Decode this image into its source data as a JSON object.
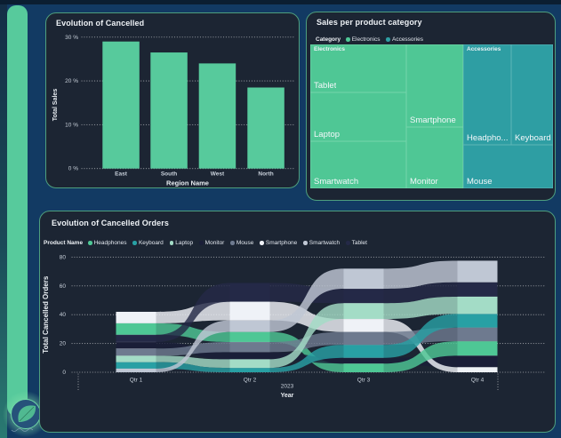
{
  "page": {
    "background": "#123A63",
    "accent": "#57CA9C"
  },
  "panels": {
    "cancelled_sales": {
      "title": "Evolution of Cancelled",
      "chart_data": {
        "type": "bar",
        "categories": [
          "East",
          "South",
          "West",
          "North"
        ],
        "values": [
          29,
          26.5,
          24,
          18.5
        ],
        "title": "Evolution of Cancelled",
        "xlabel": "Region Name",
        "ylabel": "Total Sales",
        "ylim": [
          0,
          30
        ],
        "yticks": [
          "0 %",
          "10 %",
          "20 %",
          "30 %"
        ],
        "ytick_values": [
          0,
          10,
          20,
          30
        ],
        "grid": "dotted",
        "bar_color": "#57CA9C"
      }
    },
    "sales_category": {
      "title": "Sales per product category",
      "legend": {
        "label": "Category",
        "items": [
          {
            "label": "Electronics",
            "color": "#4FC795"
          },
          {
            "label": "Accessories",
            "color": "#2E9EA3"
          }
        ]
      },
      "chart_data": {
        "type": "treemap",
        "title": "Sales per product category",
        "groups": [
          {
            "name": "Electronics",
            "color": "#4FC795"
          },
          {
            "name": "Accessories",
            "color": "#2E9EA3"
          }
        ],
        "cells": [
          {
            "name": "Tablet",
            "label": "Tablet",
            "group": "Electronics",
            "x": 0,
            "y": 0,
            "w": 0.395,
            "h": 0.335,
            "group_label": "Electronics"
          },
          {
            "name": "Laptop",
            "label": "Laptop",
            "group": "Electronics",
            "x": 0,
            "y": 0.335,
            "w": 0.395,
            "h": 0.338
          },
          {
            "name": "Smartwatch",
            "label": "Smartwatch",
            "group": "Electronics",
            "x": 0,
            "y": 0.673,
            "w": 0.395,
            "h": 0.327
          },
          {
            "name": "Smartphone",
            "label": "Smartphone",
            "group": "Electronics",
            "x": 0.395,
            "y": 0,
            "w": 0.2336,
            "h": 0.572
          },
          {
            "name": "Monitor",
            "label": "Monitor",
            "group": "Electronics",
            "x": 0.395,
            "y": 0.572,
            "w": 0.2336,
            "h": 0.428
          },
          {
            "name": "Headphones",
            "label": "Headpho...",
            "group": "Accessories",
            "x": 0.6286,
            "y": 0,
            "w": 0.2002,
            "h": 0.6975,
            "group_label": "Accessories"
          },
          {
            "name": "Keyboard",
            "label": "Keyboard",
            "group": "Accessories",
            "x": 0.8288,
            "y": 0,
            "w": 0.1712,
            "h": 0.6975
          },
          {
            "name": "Mouse",
            "label": "Mouse",
            "group": "Accessories",
            "x": 0.6286,
            "y": 0.6975,
            "w": 0.3714,
            "h": 0.3025
          }
        ]
      }
    },
    "cancelled_orders": {
      "title": "Evolution of Cancelled Orders",
      "legend_label": "Product Name",
      "chart_data": {
        "type": "ribbon",
        "title": "Evolution of Cancelled Orders",
        "categories": [
          "Qtr 1",
          "Qtr 2",
          "Qtr 3",
          "Qtr 4"
        ],
        "year_label": "2023",
        "xlabel": "Year",
        "ylabel": "Total Cancelled Orders",
        "ylim": [
          0,
          80
        ],
        "yticks": [
          0,
          20,
          40,
          60,
          80
        ],
        "series": [
          {
            "name": "Headphones",
            "color": "#4EC795",
            "values": [
              8,
              7,
              6,
              10
            ]
          },
          {
            "name": "Keyboard",
            "color": "#28A0A4",
            "values": [
              4.5,
              3,
              9,
              9.5
            ]
          },
          {
            "name": "Laptop",
            "color": "#A3DCC6",
            "values": [
              4.5,
              6,
              11,
              12
            ]
          },
          {
            "name": "Monitor",
            "color": "#1A1E38",
            "values": [
              4.5,
              5,
              4,
              8
            ]
          },
          {
            "name": "Mouse",
            "color": "#6E7A8F",
            "values": [
              5,
              7,
              9,
              9.5
            ]
          },
          {
            "name": "Smartphone",
            "color": "#EFF2F7",
            "values": [
              8,
              13,
              9,
              3.5
            ]
          },
          {
            "name": "Smartwatch",
            "color": "#BFC7D4",
            "values": [
              2.5,
              8,
              14,
              15
            ]
          },
          {
            "name": "Tablet",
            "color": "#242947",
            "values": [
              5,
              13,
              10,
              10
            ]
          }
        ],
        "stack_order_top_to_bottom": [
          [
            "Smartphone",
            "Headphones",
            "Tablet",
            "Monitor",
            "Mouse",
            "Laptop",
            "Keyboard",
            "Smartwatch"
          ],
          [
            "Tablet",
            "Smartphone",
            "Smartwatch",
            "Headphones",
            "Mouse",
            "Monitor",
            "Laptop",
            "Keyboard"
          ],
          [
            "Smartwatch",
            "Tablet",
            "Laptop",
            "Smartphone",
            "Mouse",
            "Keyboard",
            "Monitor",
            "Headphones"
          ],
          [
            "Smartwatch",
            "Tablet",
            "Laptop",
            "Keyboard",
            "Mouse",
            "Headphones",
            "Monitor",
            "Smartphone"
          ]
        ],
        "ribbon_z_order": [
          [
            "Monitor",
            "Mouse",
            "Laptop",
            "Keyboard",
            "Headphones",
            "Smartwatch",
            "Smartphone",
            "Tablet"
          ],
          [
            "Tablet",
            "Headphones",
            "Monitor",
            "Mouse",
            "Smartphone",
            "Keyboard",
            "Laptop",
            "Smartwatch"
          ],
          [
            "Monitor",
            "Smartphone",
            "Tablet",
            "Smartwatch",
            "Laptop",
            "Mouse",
            "Keyboard",
            "Headphones"
          ]
        ]
      }
    }
  },
  "logo": {
    "name": "brand-logo"
  }
}
